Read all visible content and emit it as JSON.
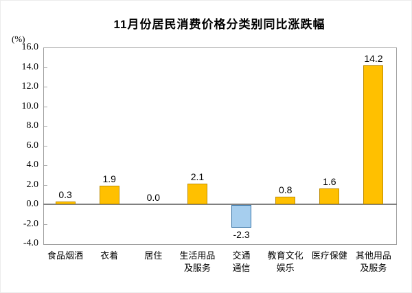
{
  "chart_data": {
    "type": "bar",
    "title": "11月份居民消费价格分类别同比涨跌幅",
    "unit_label": "(%)",
    "categories": [
      {
        "lines": [
          "食品烟酒"
        ]
      },
      {
        "lines": [
          "衣着"
        ]
      },
      {
        "lines": [
          "居住"
        ]
      },
      {
        "lines": [
          "生活用品",
          "及服务"
        ]
      },
      {
        "lines": [
          "交通",
          "通信"
        ]
      },
      {
        "lines": [
          "教育文化",
          "娱乐"
        ]
      },
      {
        "lines": [
          "医疗保健"
        ]
      },
      {
        "lines": [
          "其他用品",
          "及服务"
        ]
      }
    ],
    "values": [
      0.3,
      1.9,
      0.0,
      2.1,
      -2.3,
      0.8,
      1.6,
      14.2
    ],
    "value_labels": [
      "0.3",
      "1.9",
      "0.0",
      "2.1",
      "-2.3",
      "0.8",
      "1.6",
      "14.2"
    ],
    "ylim": [
      -4.0,
      16.0
    ],
    "ytick_values": [
      16,
      14,
      12,
      10,
      8,
      6,
      4,
      2,
      0,
      -2,
      -4
    ],
    "ytick_labels": [
      "16.0",
      "14.0",
      "12.0",
      "10.0",
      "8.0",
      "6.0",
      "4.0",
      "2.0",
      "0.0",
      "-2.0",
      "-4.0"
    ],
    "grid": false,
    "colors": {
      "positive_bar_fill": "#FFC000",
      "positive_bar_border": "#BE8C00",
      "negative_bar_fill": "#A6CEEE",
      "negative_bar_border": "#3472A6",
      "axis_line": "#808080",
      "text": "#000000"
    }
  }
}
